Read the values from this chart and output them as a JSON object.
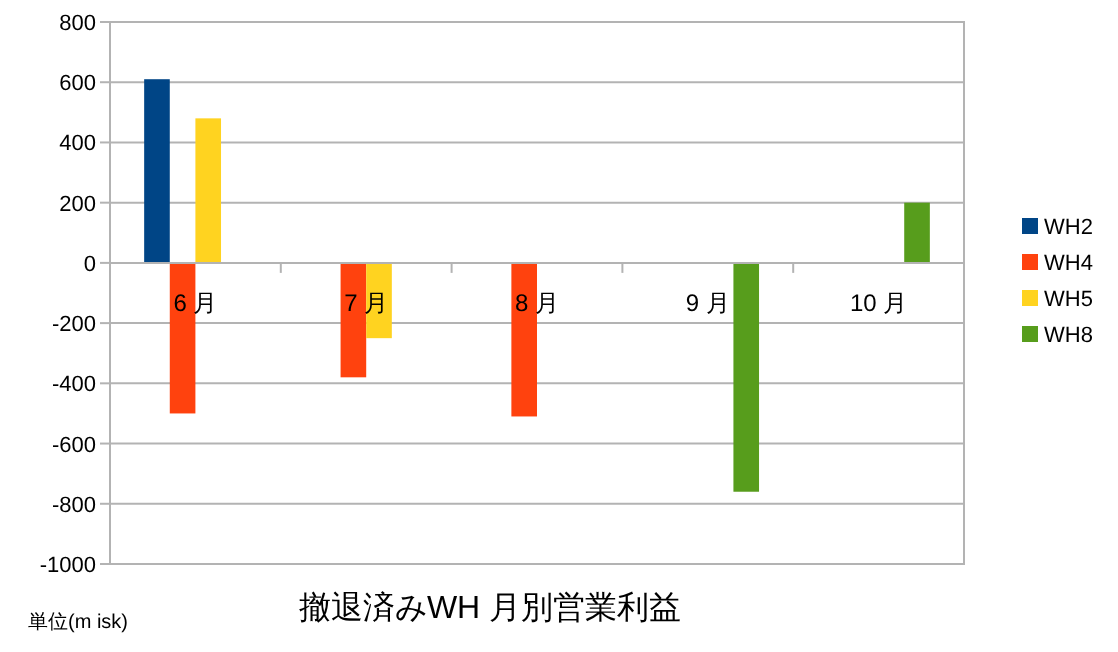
{
  "chart_data": {
    "type": "bar",
    "title": "撤退済みWH 月別営業利益",
    "categories": [
      "6 月",
      "7 月",
      "8 月",
      "9 月",
      "10 月"
    ],
    "series": [
      {
        "name": "WH2",
        "color": "#004586",
        "values": [
          610,
          null,
          null,
          null,
          null
        ]
      },
      {
        "name": "WH4",
        "color": "#ff420e",
        "values": [
          -500,
          -380,
          -510,
          null,
          null
        ]
      },
      {
        "name": "WH5",
        "color": "#ffd320",
        "values": [
          480,
          -250,
          null,
          null,
          null
        ]
      },
      {
        "name": "WH8",
        "color": "#579d1c",
        "values": [
          null,
          null,
          null,
          -760,
          200
        ]
      }
    ],
    "ylim": [
      -1000,
      800
    ],
    "yticks": [
      -1000,
      -800,
      -600,
      -400,
      -200,
      0,
      200,
      400,
      600,
      800
    ],
    "grid": "y",
    "legend": "right",
    "annotations": [
      "単位(m isk)"
    ]
  }
}
